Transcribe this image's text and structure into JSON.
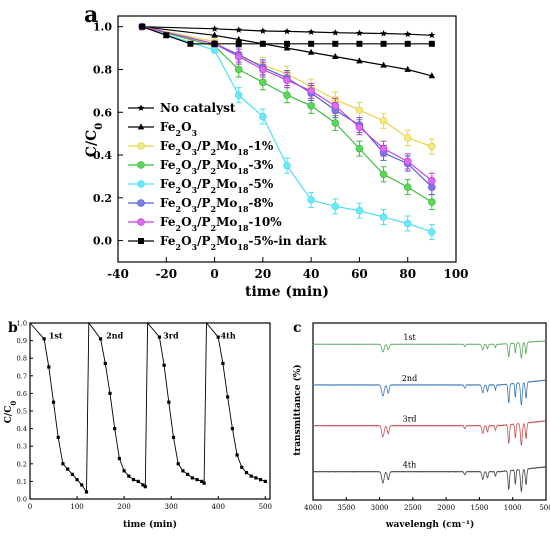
{
  "chart_data": [
    {
      "panel": "a",
      "type": "line",
      "xlabel": "time (min)",
      "ylabel": "C/C₀",
      "xlim": [
        -40,
        100
      ],
      "ylim": [
        -0.1,
        1.05
      ],
      "xticks": [
        -40,
        -20,
        0,
        20,
        40,
        60,
        80,
        100
      ],
      "yticks": [
        0.0,
        0.2,
        0.4,
        0.6,
        0.8,
        1.0
      ],
      "legend_position": "bottom-left",
      "series": [
        {
          "name": "No catalyst",
          "name_html": "No catalyst",
          "color": "#000000",
          "marker": "star",
          "error_bars": false,
          "x": [
            -30,
            0,
            10,
            20,
            30,
            40,
            50,
            60,
            70,
            80,
            90
          ],
          "y": [
            1.0,
            0.99,
            0.985,
            0.98,
            0.978,
            0.975,
            0.972,
            0.97,
            0.968,
            0.965,
            0.96
          ]
        },
        {
          "name": "Fe2O3",
          "name_html": "Fe<tspan baseline-shift='sub' font-size='70%'>2</tspan>O<tspan baseline-shift='sub' font-size='70%'>3</tspan>",
          "color": "#000000",
          "marker": "triangle",
          "error_bars": false,
          "x": [
            -30,
            0,
            10,
            20,
            30,
            40,
            50,
            60,
            70,
            80,
            90
          ],
          "y": [
            1.0,
            0.96,
            0.94,
            0.92,
            0.9,
            0.88,
            0.86,
            0.84,
            0.82,
            0.8,
            0.77
          ]
        },
        {
          "name": "Fe2O3/P2Mo18-1%",
          "color": "#e8d44d",
          "fill": "#f2e98a",
          "marker": "circle",
          "error_bars": true,
          "x": [
            -30,
            0,
            10,
            20,
            30,
            40,
            50,
            60,
            70,
            80,
            90
          ],
          "y": [
            1.0,
            0.93,
            0.86,
            0.82,
            0.78,
            0.72,
            0.66,
            0.61,
            0.56,
            0.48,
            0.44
          ]
        },
        {
          "name": "Fe2O3/P2Mo18-3%",
          "color": "#3cbf3c",
          "fill": "#5fd45f",
          "marker": "circle",
          "error_bars": true,
          "x": [
            -30,
            0,
            10,
            20,
            30,
            40,
            50,
            60,
            70,
            80,
            90
          ],
          "y": [
            1.0,
            0.91,
            0.8,
            0.74,
            0.68,
            0.63,
            0.55,
            0.43,
            0.31,
            0.25,
            0.18
          ]
        },
        {
          "name": "Fe2O3/P2Mo18-5%",
          "color": "#4de0f0",
          "fill": "#6fe8f5",
          "marker": "circle",
          "error_bars": true,
          "x": [
            -30,
            0,
            10,
            20,
            30,
            40,
            50,
            60,
            70,
            80,
            90
          ],
          "y": [
            1.0,
            0.89,
            0.68,
            0.58,
            0.35,
            0.19,
            0.16,
            0.14,
            0.11,
            0.08,
            0.04
          ]
        },
        {
          "name": "Fe2O3/P2Mo18-8%",
          "color": "#5560d8",
          "fill": "#7a82e8",
          "marker": "circle",
          "error_bars": true,
          "x": [
            -30,
            0,
            10,
            20,
            30,
            40,
            50,
            60,
            70,
            80,
            90
          ],
          "y": [
            1.0,
            0.92,
            0.87,
            0.81,
            0.76,
            0.69,
            0.61,
            0.54,
            0.41,
            0.36,
            0.25
          ]
        },
        {
          "name": "Fe2O3/P2Mo18-10%",
          "color": "#c040e0",
          "fill": "#d870f0",
          "marker": "circle",
          "error_bars": true,
          "x": [
            -30,
            0,
            10,
            20,
            30,
            40,
            50,
            60,
            70,
            80,
            90
          ],
          "y": [
            1.0,
            0.92,
            0.86,
            0.8,
            0.75,
            0.7,
            0.63,
            0.53,
            0.43,
            0.37,
            0.28
          ]
        },
        {
          "name": "Fe2O3/P2Mo18-5%-in dark",
          "color": "#000000",
          "marker": "square",
          "error_bars": false,
          "x": [
            -30,
            -20,
            -10,
            0,
            10,
            20,
            30,
            40,
            50,
            60,
            70,
            80,
            90
          ],
          "y": [
            1.0,
            0.96,
            0.92,
            0.92,
            0.92,
            0.92,
            0.92,
            0.92,
            0.92,
            0.92,
            0.92,
            0.92,
            0.92
          ]
        }
      ]
    },
    {
      "panel": "b",
      "type": "line",
      "xlabel": "time (min)",
      "ylabel": "C/C₀",
      "xlim": [
        0,
        510
      ],
      "ylim": [
        0,
        1.0
      ],
      "xticks": [
        0,
        100,
        200,
        300,
        400,
        500
      ],
      "yticks": [
        0.0,
        0.1,
        0.2,
        0.3,
        0.4,
        0.5,
        0.6,
        0.7,
        0.8,
        0.9,
        1.0
      ],
      "cycle_labels": [
        {
          "text": "1st",
          "x": 40,
          "y": 0.93
        },
        {
          "text": "2nd",
          "x": 162,
          "y": 0.93
        },
        {
          "text": "3rd",
          "x": 283,
          "y": 0.93
        },
        {
          "text": "4th",
          "x": 405,
          "y": 0.93
        }
      ],
      "series": [
        {
          "name": "cycles",
          "color": "#000000",
          "marker": "square",
          "x": [
            0,
            30,
            40,
            50,
            60,
            70,
            80,
            90,
            100,
            110,
            120,
            125,
            150,
            160,
            170,
            180,
            190,
            200,
            210,
            220,
            230,
            240,
            245,
            250,
            275,
            285,
            295,
            305,
            315,
            325,
            335,
            345,
            355,
            365,
            370,
            375,
            400,
            410,
            420,
            430,
            440,
            450,
            460,
            470,
            480,
            490,
            500
          ],
          "y": [
            1.0,
            0.91,
            0.75,
            0.55,
            0.35,
            0.2,
            0.17,
            0.14,
            0.11,
            0.08,
            0.04,
            1.0,
            0.91,
            0.77,
            0.6,
            0.4,
            0.23,
            0.16,
            0.13,
            0.11,
            0.1,
            0.08,
            0.07,
            1.0,
            0.92,
            0.76,
            0.55,
            0.35,
            0.2,
            0.16,
            0.14,
            0.12,
            0.11,
            0.1,
            0.09,
            1.0,
            0.92,
            0.77,
            0.58,
            0.4,
            0.25,
            0.18,
            0.15,
            0.13,
            0.12,
            0.11,
            0.1
          ]
        }
      ]
    },
    {
      "panel": "c",
      "type": "line",
      "xlabel": "wavelengh (cm⁻¹)",
      "ylabel": "transmittance (%)",
      "xlim": [
        4000,
        500
      ],
      "xticks": [
        4000,
        3500,
        3000,
        2500,
        2000,
        1500,
        1000,
        500
      ],
      "series": [
        {
          "name": "1st",
          "color": "#5aa85a",
          "offset": 0.88
        },
        {
          "name": "2nd",
          "color": "#3a78b8",
          "offset": 0.65
        },
        {
          "name": "3rd",
          "color": "#c85050",
          "offset": 0.42
        },
        {
          "name": "4th",
          "color": "#444444",
          "offset": 0.16
        }
      ]
    }
  ],
  "panel_labels": {
    "a": "a",
    "b": "b",
    "c": "c"
  }
}
